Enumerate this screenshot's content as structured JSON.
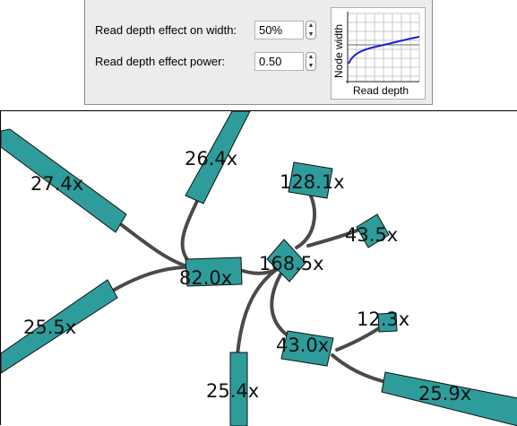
{
  "settings": {
    "width_effect": {
      "label": "Read depth effect on width:",
      "value": "50%"
    },
    "power_effect": {
      "label": "Read depth effect power:",
      "value": "0.50"
    }
  },
  "mini_chart": {
    "ylabel": "Node width",
    "xlabel": "Read depth",
    "line_color": "#1f1fd0"
  },
  "graph": {
    "node_color": "#2e9c9a",
    "edge_color": "#4a4a4a",
    "nodes": [
      {
        "id": "n1",
        "label": "27.4x"
      },
      {
        "id": "n2",
        "label": "26.4x"
      },
      {
        "id": "n3",
        "label": "25.5x"
      },
      {
        "id": "n4",
        "label": "82.0x"
      },
      {
        "id": "n5",
        "label": "128.1x"
      },
      {
        "id": "n6",
        "label": "168.5x"
      },
      {
        "id": "n7",
        "label": "43.5x"
      },
      {
        "id": "n8",
        "label": "12.3x"
      },
      {
        "id": "n9",
        "label": "43.0x"
      },
      {
        "id": "n10",
        "label": "25.4x"
      },
      {
        "id": "n11",
        "label": "25.9x"
      }
    ]
  }
}
